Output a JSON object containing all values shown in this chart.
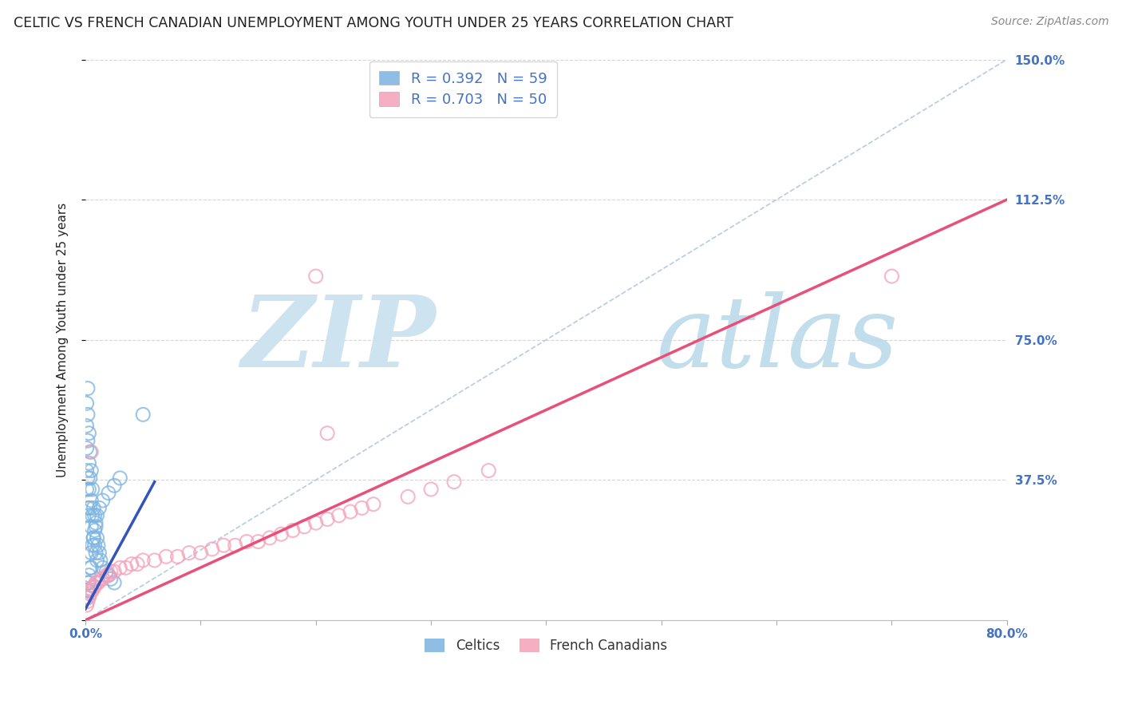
{
  "title": "CELTIC VS FRENCH CANADIAN UNEMPLOYMENT AMONG YOUTH UNDER 25 YEARS CORRELATION CHART",
  "source": "Source: ZipAtlas.com",
  "ylabel": "Unemployment Among Youth under 25 years",
  "xlim": [
    0.0,
    0.8
  ],
  "ylim": [
    0.0,
    1.5
  ],
  "xtick_positions": [
    0.0,
    0.1,
    0.2,
    0.3,
    0.4,
    0.5,
    0.6,
    0.7,
    0.8
  ],
  "xticklabels": [
    "0.0%",
    "",
    "",
    "",
    "",
    "",
    "",
    "",
    "80.0%"
  ],
  "ytick_positions": [
    0.0,
    0.375,
    0.75,
    1.125,
    1.5
  ],
  "yticklabels_right": [
    "",
    "37.5%",
    "75.0%",
    "112.5%",
    "150.0%"
  ],
  "celtic_color": "#7bb3e0",
  "french_color": "#f4a0b8",
  "blue_line_color": "#3355bb",
  "pink_line_color": "#e8507a",
  "diag_color": "#aac8e0",
  "text_color": "#222222",
  "tick_label_color": "#4472c4",
  "grid_color": "#cccccc",
  "background": "#ffffff",
  "watermark_zip_color": "#cde4f0",
  "watermark_atlas_color": "#b8d8e8",
  "title_fontsize": 12.5,
  "source_fontsize": 10,
  "tick_fontsize": 11,
  "legend_fontsize": 13,
  "ylabel_fontsize": 11,
  "marker_size": 150,
  "celtic_x": [
    0.001,
    0.001,
    0.001,
    0.001,
    0.001,
    0.002,
    0.002,
    0.002,
    0.002,
    0.002,
    0.003,
    0.003,
    0.003,
    0.003,
    0.004,
    0.004,
    0.004,
    0.005,
    0.005,
    0.005,
    0.006,
    0.006,
    0.007,
    0.007,
    0.008,
    0.008,
    0.009,
    0.009,
    0.01,
    0.01,
    0.011,
    0.012,
    0.013,
    0.015,
    0.018,
    0.02,
    0.022,
    0.025,
    0.001,
    0.001,
    0.002,
    0.002,
    0.003,
    0.003,
    0.004,
    0.005,
    0.005,
    0.006,
    0.007,
    0.008,
    0.009,
    0.01,
    0.012,
    0.015,
    0.02,
    0.025,
    0.03,
    0.05
  ],
  "celtic_y": [
    0.58,
    0.52,
    0.46,
    0.4,
    0.35,
    0.62,
    0.55,
    0.48,
    0.38,
    0.3,
    0.5,
    0.42,
    0.35,
    0.28,
    0.45,
    0.38,
    0.3,
    0.4,
    0.32,
    0.25,
    0.35,
    0.28,
    0.3,
    0.22,
    0.28,
    0.2,
    0.25,
    0.18,
    0.22,
    0.16,
    0.2,
    0.18,
    0.16,
    0.14,
    0.13,
    0.12,
    0.11,
    0.1,
    0.08,
    0.06,
    0.1,
    0.08,
    0.12,
    0.1,
    0.14,
    0.18,
    0.14,
    0.2,
    0.22,
    0.24,
    0.26,
    0.28,
    0.3,
    0.32,
    0.34,
    0.36,
    0.38,
    0.55
  ],
  "french_x": [
    0.001,
    0.002,
    0.003,
    0.004,
    0.005,
    0.006,
    0.007,
    0.008,
    0.009,
    0.01,
    0.011,
    0.013,
    0.015,
    0.018,
    0.02,
    0.022,
    0.025,
    0.03,
    0.035,
    0.04,
    0.045,
    0.05,
    0.06,
    0.07,
    0.08,
    0.09,
    0.1,
    0.11,
    0.12,
    0.13,
    0.14,
    0.15,
    0.16,
    0.17,
    0.18,
    0.19,
    0.2,
    0.21,
    0.22,
    0.23,
    0.24,
    0.25,
    0.28,
    0.3,
    0.32,
    0.35,
    0.7,
    0.005,
    0.2,
    0.21
  ],
  "french_y": [
    0.04,
    0.05,
    0.06,
    0.07,
    0.08,
    0.08,
    0.09,
    0.09,
    0.1,
    0.1,
    0.1,
    0.11,
    0.11,
    0.12,
    0.12,
    0.13,
    0.13,
    0.14,
    0.14,
    0.15,
    0.15,
    0.16,
    0.16,
    0.17,
    0.17,
    0.18,
    0.18,
    0.19,
    0.2,
    0.2,
    0.21,
    0.21,
    0.22,
    0.23,
    0.24,
    0.25,
    0.26,
    0.27,
    0.28,
    0.29,
    0.3,
    0.31,
    0.33,
    0.35,
    0.37,
    0.4,
    0.92,
    0.45,
    0.92,
    0.5
  ],
  "celtic_line_x": [
    0.0,
    0.06
  ],
  "celtic_line_y": [
    0.03,
    0.37
  ],
  "french_line_x": [
    0.0,
    0.8
  ],
  "french_line_y": [
    0.0,
    1.125
  ]
}
